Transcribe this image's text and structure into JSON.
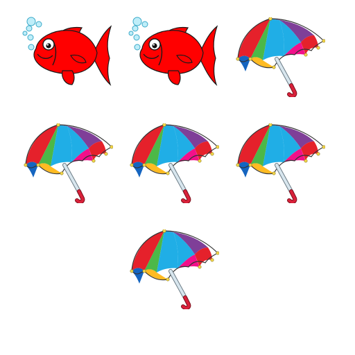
{
  "items": [
    {
      "kind": "fish"
    },
    {
      "kind": "fish"
    },
    {
      "kind": "umbrella"
    },
    {
      "kind": "umbrella"
    },
    {
      "kind": "umbrella"
    },
    {
      "kind": "umbrella"
    },
    {
      "kind": "umbrella"
    }
  ],
  "colors": {
    "background": "#ffffff",
    "fish_body": "#ff0000",
    "fish_outline": "#1a1a1a",
    "bubble": "#bfeef9",
    "bubble_outline": "#3aa9c8",
    "umbrella_panels": [
      "#e5212b",
      "#4cb848",
      "#20aee6",
      "#7f3f98",
      "#f2108a",
      "#ffbb22",
      "#1565c0"
    ],
    "umbrella_handle": "#d9213a",
    "umbrella_shaft": "#d8e6ee",
    "umbrella_tip": "#f5d74a"
  }
}
